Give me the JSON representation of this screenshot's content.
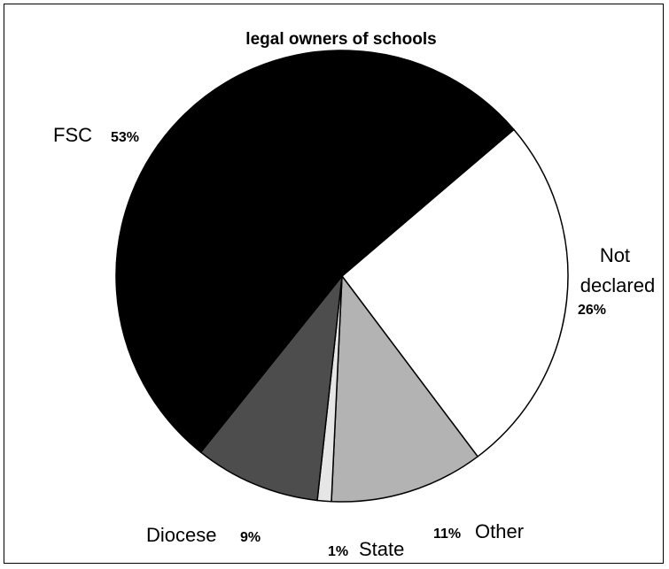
{
  "chart_data": {
    "type": "pie",
    "title": "legal owners of schools",
    "slices": [
      {
        "category": "FSC",
        "value": 53,
        "label": "53%",
        "color": "#000000"
      },
      {
        "category": "Not declared",
        "value": 26,
        "label": "26%",
        "color": "#ffffff"
      },
      {
        "category": "Other",
        "value": 11,
        "label": "11%",
        "color": "#b3b3b3"
      },
      {
        "category": "State",
        "value": 1,
        "label": "1%",
        "color": "#e6e6e6"
      },
      {
        "category": "Diocese",
        "value": 9,
        "label": "9%",
        "color": "#4d4d4d"
      }
    ],
    "legend": "none"
  }
}
